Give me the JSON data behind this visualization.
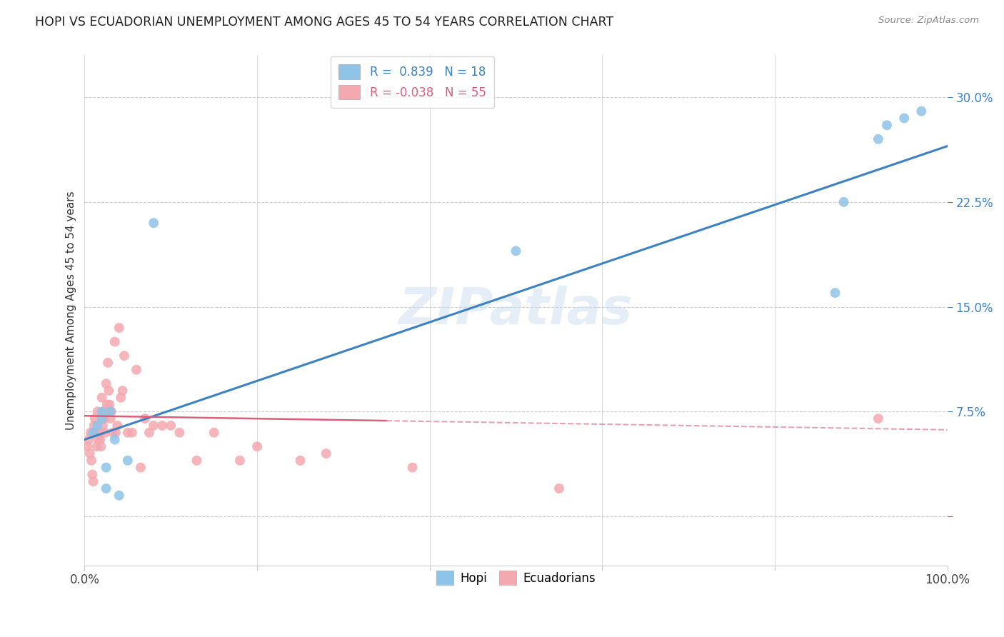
{
  "title": "HOPI VS ECUADORIAN UNEMPLOYMENT AMONG AGES 45 TO 54 YEARS CORRELATION CHART",
  "source": "Source: ZipAtlas.com",
  "ylabel": "Unemployment Among Ages 45 to 54 years",
  "xlim": [
    0.0,
    1.0
  ],
  "ylim": [
    -0.035,
    0.33
  ],
  "yticks": [
    0.0,
    0.075,
    0.15,
    0.225,
    0.3
  ],
  "ytick_labels": [
    "",
    "7.5%",
    "15.0%",
    "22.5%",
    "30.0%"
  ],
  "xticks": [
    0.0,
    0.2,
    0.4,
    0.6,
    0.8,
    1.0
  ],
  "xtick_labels": [
    "0.0%",
    "",
    "",
    "",
    "",
    "100.0%"
  ],
  "hopi_color": "#8ec4e8",
  "ecuadorian_color": "#f4a8b0",
  "hopi_line_color": "#3b82c4",
  "ecuadorian_line_color": "#d9607a",
  "ecuadorian_line_dash_color": "#e8a0b0",
  "watermark": "ZIPatlas",
  "legend_R_hopi": "0.839",
  "legend_N_hopi": "18",
  "legend_R_ecu": "-0.038",
  "legend_N_ecu": "55",
  "hopi_x": [
    0.01,
    0.015,
    0.02,
    0.02,
    0.025,
    0.025,
    0.03,
    0.035,
    0.04,
    0.05,
    0.08,
    0.5,
    0.87,
    0.88,
    0.92,
    0.93,
    0.95,
    0.97
  ],
  "hopi_y": [
    0.06,
    0.065,
    0.07,
    0.075,
    0.02,
    0.035,
    0.075,
    0.055,
    0.015,
    0.04,
    0.21,
    0.19,
    0.16,
    0.225,
    0.27,
    0.28,
    0.285,
    0.29
  ],
  "ecu_x": [
    0.003,
    0.005,
    0.006,
    0.007,
    0.008,
    0.009,
    0.01,
    0.011,
    0.012,
    0.013,
    0.014,
    0.015,
    0.016,
    0.017,
    0.018,
    0.019,
    0.02,
    0.021,
    0.022,
    0.023,
    0.024,
    0.025,
    0.026,
    0.027,
    0.028,
    0.029,
    0.03,
    0.031,
    0.033,
    0.035,
    0.036,
    0.038,
    0.04,
    0.042,
    0.044,
    0.046,
    0.05,
    0.055,
    0.06,
    0.065,
    0.07,
    0.075,
    0.08,
    0.09,
    0.1,
    0.11,
    0.13,
    0.15,
    0.18,
    0.2,
    0.25,
    0.28,
    0.38,
    0.55,
    0.92
  ],
  "ecu_y": [
    0.05,
    0.055,
    0.045,
    0.06,
    0.04,
    0.03,
    0.025,
    0.065,
    0.07,
    0.06,
    0.05,
    0.075,
    0.055,
    0.06,
    0.055,
    0.05,
    0.085,
    0.065,
    0.075,
    0.07,
    0.06,
    0.095,
    0.08,
    0.11,
    0.09,
    0.08,
    0.07,
    0.075,
    0.06,
    0.125,
    0.06,
    0.065,
    0.135,
    0.085,
    0.09,
    0.115,
    0.06,
    0.06,
    0.105,
    0.035,
    0.07,
    0.06,
    0.065,
    0.065,
    0.065,
    0.06,
    0.04,
    0.06,
    0.04,
    0.05,
    0.04,
    0.045,
    0.035,
    0.02,
    0.07
  ]
}
